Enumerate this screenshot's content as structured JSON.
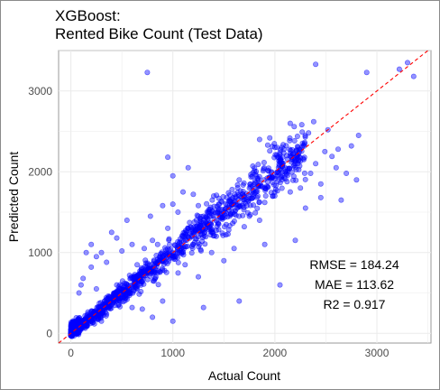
{
  "chart_data": {
    "type": "scatter",
    "title": "XGBoost:",
    "subtitle": "Rented Bike Count (Test Data)",
    "xlabel": "Actual Count",
    "ylabel": "Predicted Count",
    "xlim": [
      -120,
      3530
    ],
    "ylim": [
      -120,
      3500
    ],
    "xticks": [
      0,
      1000,
      2000,
      3000
    ],
    "yticks": [
      0,
      1000,
      2000,
      3000
    ],
    "grid": true,
    "reference_line": {
      "type": "identity",
      "color": "#ff0000",
      "style": "dashed"
    },
    "point_color": "#0000ff",
    "annotations": [
      "RMSE = 184.24",
      "MAE = 113.62",
      "R2 = 0.917"
    ],
    "points": [
      [
        750,
        3230
      ],
      [
        2400,
        3330
      ],
      [
        2900,
        3230
      ],
      [
        3300,
        3350
      ],
      [
        3220,
        3270
      ],
      [
        3360,
        3180
      ],
      [
        2820,
        2450
      ],
      [
        2750,
        2320
      ],
      [
        2620,
        2280
      ],
      [
        2600,
        2050
      ],
      [
        2700,
        1980
      ],
      [
        2490,
        2250
      ],
      [
        2560,
        2190
      ],
      [
        2450,
        1680
      ],
      [
        2520,
        2520
      ],
      [
        2380,
        2620
      ],
      [
        2330,
        2480
      ],
      [
        2280,
        2330
      ],
      [
        2200,
        2250
      ],
      [
        2400,
        2100
      ],
      [
        2350,
        1980
      ],
      [
        2250,
        1800
      ],
      [
        2150,
        1750
      ],
      [
        2050,
        2180
      ],
      [
        1950,
        2420
      ],
      [
        2100,
        2050
      ],
      [
        1980,
        1700
      ],
      [
        1900,
        1620
      ],
      [
        1850,
        2400
      ],
      [
        1800,
        2010
      ],
      [
        1750,
        1450
      ],
      [
        2300,
        1550
      ],
      [
        1700,
        1320
      ],
      [
        1650,
        1900
      ],
      [
        1580,
        1780
      ],
      [
        1520,
        1220
      ],
      [
        1450,
        1600
      ],
      [
        1400,
        1700
      ],
      [
        1380,
        1250
      ],
      [
        1300,
        1450
      ],
      [
        1250,
        1580
      ],
      [
        1200,
        1720
      ],
      [
        1150,
        1300
      ],
      [
        1100,
        1750
      ],
      [
        1050,
        1500
      ],
      [
        1000,
        1600
      ],
      [
        950,
        1300
      ],
      [
        900,
        1580
      ],
      [
        850,
        1100
      ],
      [
        800,
        1150
      ],
      [
        780,
        1450
      ],
      [
        720,
        1050
      ],
      [
        650,
        850
      ],
      [
        600,
        1100
      ],
      [
        550,
        1400
      ],
      [
        500,
        1020
      ],
      [
        450,
        1180
      ],
      [
        400,
        1250
      ],
      [
        350,
        880
      ],
      [
        300,
        1000
      ],
      [
        250,
        950
      ],
      [
        200,
        820
      ],
      [
        150,
        1000
      ],
      [
        120,
        680
      ],
      [
        100,
        600
      ],
      [
        80,
        500
      ],
      [
        800,
        200
      ],
      [
        1000,
        150
      ],
      [
        1300,
        320
      ],
      [
        1650,
        400
      ],
      [
        2050,
        600
      ],
      [
        900,
        400
      ],
      [
        700,
        300
      ],
      [
        1500,
        900
      ],
      [
        1250,
        700
      ],
      [
        2200,
        1150
      ],
      [
        1600,
        1050
      ],
      [
        1900,
        1100
      ],
      [
        2450,
        1850
      ],
      [
        2650,
        1650
      ],
      [
        1120,
        850
      ],
      [
        1380,
        1000
      ],
      [
        1000,
        1950
      ],
      [
        1150,
        2050
      ],
      [
        450,
        600
      ],
      [
        550,
        450
      ],
      [
        300,
        150
      ],
      [
        250,
        550
      ],
      [
        600,
        320
      ],
      [
        200,
        1100
      ],
      [
        1700,
        1700
      ],
      [
        1850,
        1400
      ],
      [
        2000,
        2300
      ],
      [
        2150,
        2600
      ],
      [
        2800,
        1900
      ],
      [
        950,
        2180
      ],
      [
        350,
        420
      ],
      [
        1200,
        1100
      ],
      [
        1450,
        1350
      ],
      [
        1750,
        1800
      ]
    ]
  }
}
